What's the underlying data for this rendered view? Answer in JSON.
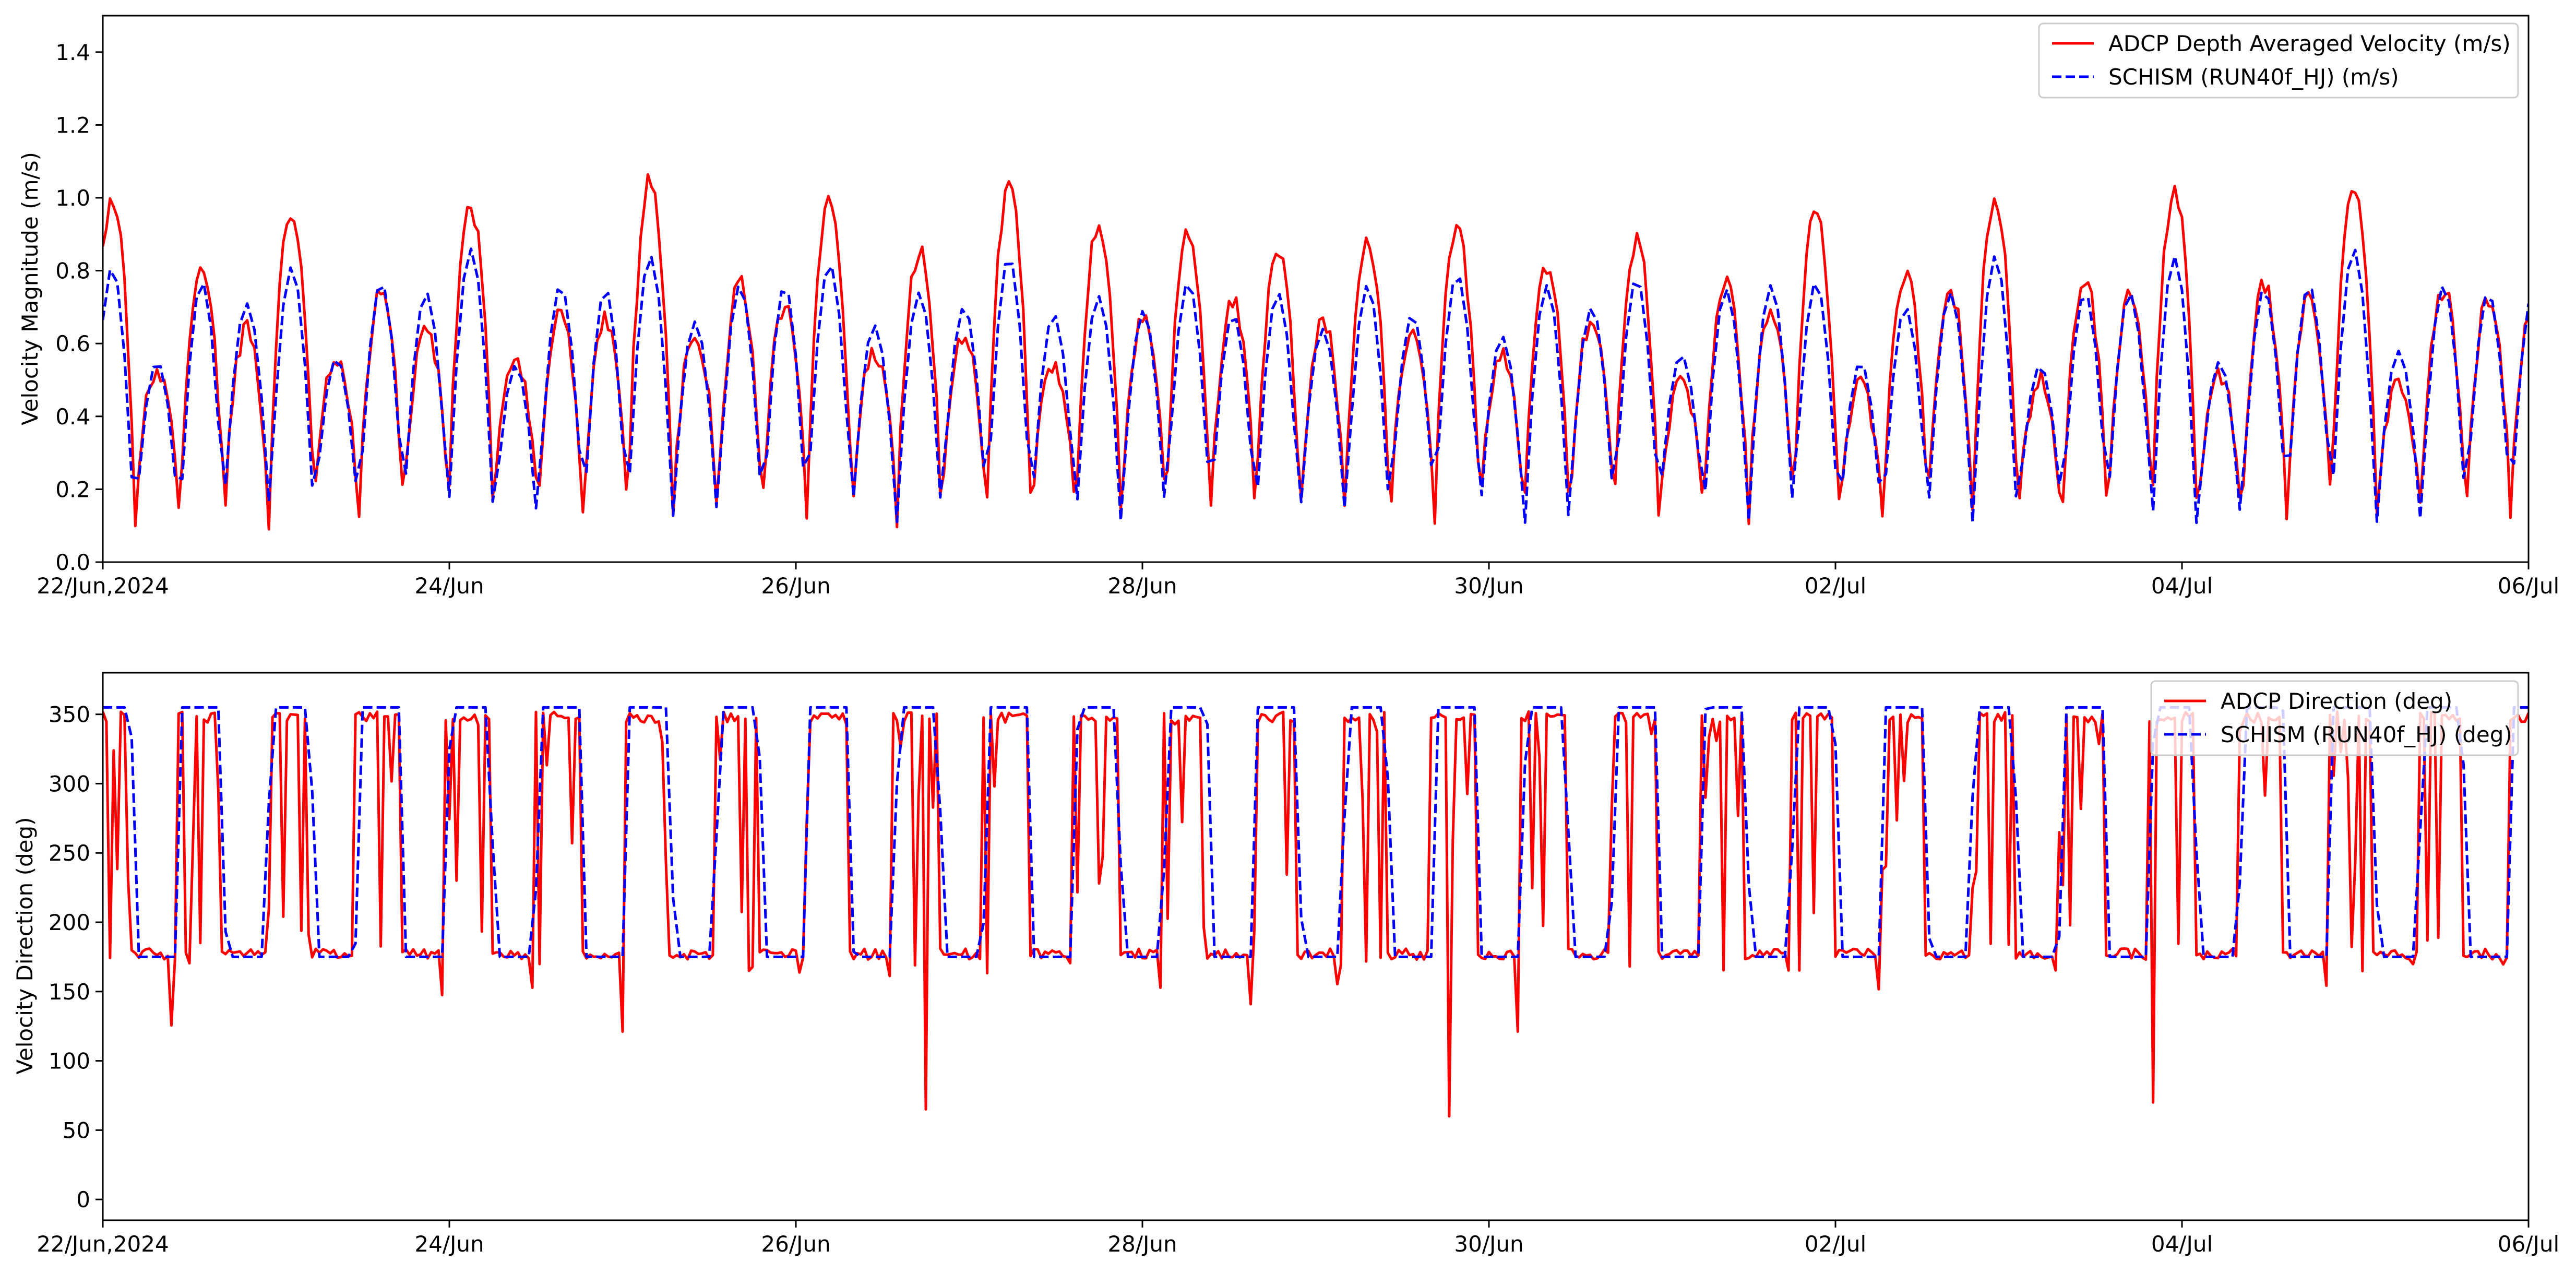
{
  "colors": {
    "adcp": "#ff0000",
    "schism": "#0000ff",
    "axes": "#000000",
    "background": "#ffffff"
  },
  "chart_data": [
    {
      "type": "line",
      "title": "",
      "xlabel": "",
      "ylabel": "Velocity Magnitude (m/s)",
      "xlim": [
        "2024-06-22",
        "2024-07-06"
      ],
      "ylim": [
        0.0,
        1.5
      ],
      "grid": false,
      "legend_position": "top-right",
      "x_ticks": [
        "22/Jun,2024",
        "24/Jun",
        "26/Jun",
        "28/Jun",
        "30/Jun",
        "02/Jul",
        "04/Jul",
        "06/Jul"
      ],
      "y_ticks": [
        "0.0",
        "0.2",
        "0.4",
        "0.6",
        "0.8",
        "1.0",
        "1.2",
        "1.4"
      ],
      "series": [
        {
          "name": "ADCP Depth Averaged Velocity (m/s)",
          "style": "solid",
          "color": "#ff0000",
          "x": [
            "2024-06-22",
            "2024-07-06"
          ],
          "sampling_interval_hours": 0.5,
          "period_hours": 12.42,
          "peak_values": [
            1.0,
            0.53,
            0.79,
            0.64,
            0.97,
            0.56,
            0.75,
            0.65,
            0.97,
            0.55,
            0.69,
            0.66,
            1.05,
            0.63,
            0.76,
            0.71,
            0.98,
            0.58,
            0.85,
            0.63,
            1.03,
            0.54,
            0.92,
            0.66,
            0.91,
            0.71,
            0.86,
            0.66,
            0.87,
            0.63,
            0.91,
            0.58,
            0.82,
            0.67,
            0.88,
            0.49,
            0.76,
            0.7,
            0.97,
            0.48,
            0.79,
            0.75,
            1.0,
            0.5,
            0.77,
            0.73,
            1.02,
            0.51,
            0.76,
            0.73,
            1.04,
            0.48,
            0.75,
            0.72
          ],
          "trough_values": [
            0.12,
            0.08,
            0.1,
            0.09,
            0.09,
            0.1,
            0.08,
            0.12,
            0.1,
            0.11,
            0.1,
            0.09,
            0.09,
            0.1,
            0.08,
            0.09,
            0.1,
            0.09,
            0.08,
            0.1,
            0.08,
            0.09,
            0.1,
            0.09,
            0.08,
            0.1,
            0.09,
            0.1,
            0.1,
            0.09,
            0.1,
            0.09,
            0.1,
            0.08,
            0.1,
            0.11,
            0.09,
            0.1,
            0.09,
            0.1,
            0.09,
            0.1,
            0.09,
            0.08,
            0.1,
            0.09,
            0.09,
            0.1,
            0.08,
            0.1,
            0.1,
            0.09,
            0.09,
            0.1
          ]
        },
        {
          "name": "SCHISM (RUN40f_HJ) (m/s)",
          "style": "dashed",
          "color": "#0000ff",
          "x": [
            "2024-06-22",
            "2024-07-06"
          ],
          "sampling_interval_hours": 1,
          "period_hours": 12.42,
          "peak_values": [
            0.81,
            0.55,
            0.77,
            0.71,
            0.81,
            0.56,
            0.77,
            0.74,
            0.86,
            0.54,
            0.76,
            0.75,
            0.84,
            0.66,
            0.76,
            0.76,
            0.82,
            0.65,
            0.74,
            0.7,
            0.84,
            0.68,
            0.73,
            0.69,
            0.77,
            0.68,
            0.74,
            0.64,
            0.76,
            0.68,
            0.79,
            0.62,
            0.76,
            0.7,
            0.78,
            0.57,
            0.75,
            0.76,
            0.77,
            0.55,
            0.7,
            0.74,
            0.84,
            0.54,
            0.74,
            0.74,
            0.84,
            0.55,
            0.75,
            0.76,
            0.86,
            0.58,
            0.76,
            0.74
          ],
          "trough_values": [
            0.05,
            0.07,
            0.07,
            0.15,
            0.1,
            0.1,
            0.1,
            0.12,
            0.12,
            0.06,
            0.12,
            0.05,
            0.12,
            0.1,
            0.1,
            0.03,
            0.12,
            0.1,
            0.1,
            0.13,
            0.08,
            0.1,
            0.1,
            0.09,
            0.1,
            0.1,
            0.07,
            0.12,
            0.08,
            0.1,
            0.12,
            0.09,
            0.07,
            0.11,
            0.08,
            0.12,
            0.1,
            0.1,
            0.1,
            0.05,
            0.1,
            0.1,
            0.07,
            0.1,
            0.12,
            0.1,
            0.07,
            0.06,
            0.11,
            0.1,
            0.1,
            0.08,
            0.1,
            0.1
          ]
        }
      ]
    },
    {
      "type": "line",
      "title": "",
      "xlabel": "",
      "ylabel": "Velocity Direction (deg)",
      "xlim": [
        "2024-06-22",
        "2024-07-06"
      ],
      "ylim": [
        -15,
        380
      ],
      "grid": false,
      "legend_position": "top-right",
      "x_ticks": [
        "22/Jun,2024",
        "24/Jun",
        "26/Jun",
        "28/Jun",
        "30/Jun",
        "02/Jul",
        "04/Jul",
        "06/Jul"
      ],
      "y_ticks": [
        "0",
        "50",
        "100",
        "150",
        "200",
        "250",
        "300",
        "350"
      ],
      "series": [
        {
          "name": "ADCP Direction (deg)",
          "style": "solid",
          "color": "#ff0000",
          "x": [
            "2024-06-22",
            "2024-07-06"
          ],
          "sampling_interval_hours": 0.5,
          "flood_direction_deg": 352,
          "ebb_direction_deg": 177,
          "noise_range_deg": [
            60,
            355
          ],
          "lowest_spikes": [
            {
              "x": "2024-06-26T18:00",
              "y": 65
            },
            {
              "x": "2024-06-29T18:30",
              "y": 60
            },
            {
              "x": "2024-07-03T20:00",
              "y": 70
            }
          ]
        },
        {
          "name": "SCHISM (RUN40f_HJ) (deg)",
          "style": "dashed",
          "color": "#0000ff",
          "x": [
            "2024-06-22",
            "2024-07-06"
          ],
          "sampling_interval_hours": 1,
          "flood_direction_deg": 355,
          "ebb_direction_deg": 175
        }
      ]
    }
  ]
}
